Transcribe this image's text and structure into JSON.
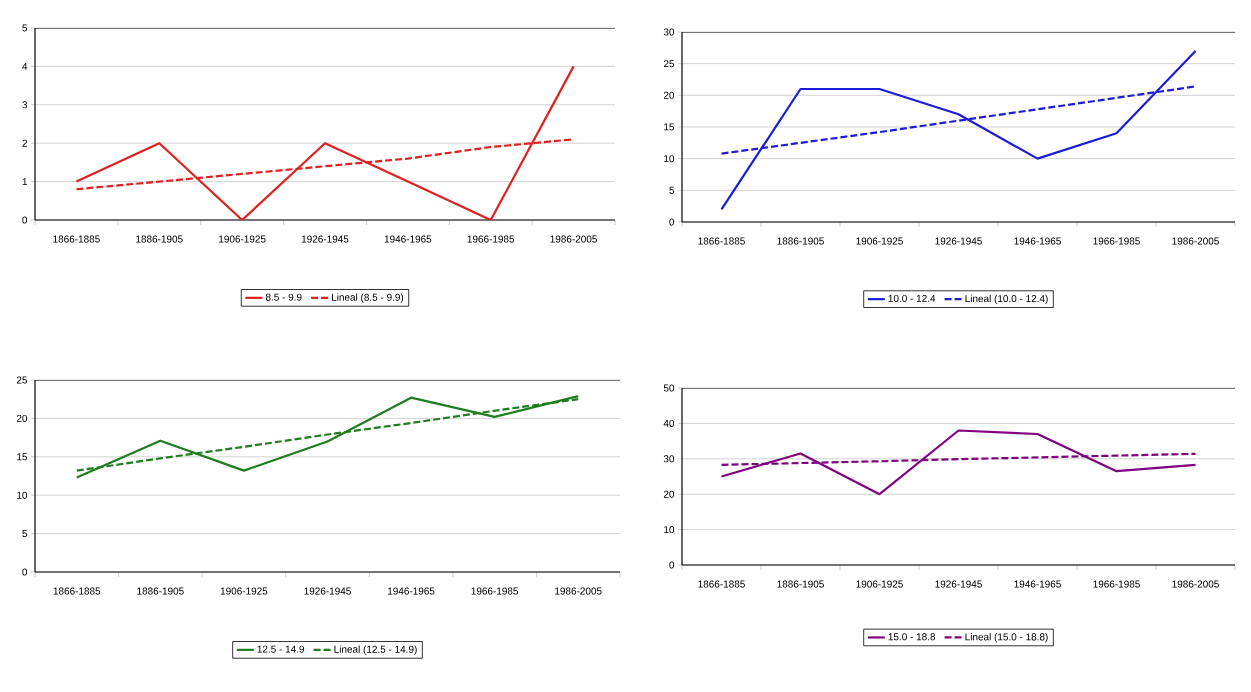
{
  "chart_data": [
    {
      "type": "line",
      "categories": [
        "1866-1885",
        "1886-1905",
        "1906-1925",
        "1926-1945",
        "1946-1965",
        "1966-1985",
        "1986-2005"
      ],
      "ylim": [
        0,
        5
      ],
      "yticks": [
        0,
        1,
        2,
        3,
        4,
        5
      ],
      "grid": "y",
      "legend": "bottom",
      "series": [
        {
          "name": "8.5 - 9.9",
          "color": "#e02020",
          "line_style": "solid",
          "values": [
            1,
            2,
            0,
            2,
            1,
            0,
            4
          ]
        },
        {
          "name": "Lineal (8.5 - 9.9)",
          "color": "#e02020",
          "line_style": "dashed",
          "values": [
            0.8,
            1.0,
            1.2,
            1.4,
            1.6,
            1.9,
            2.1
          ]
        }
      ]
    },
    {
      "type": "line",
      "categories": [
        "1866-1885",
        "1886-1905",
        "1906-1925",
        "1926-1945",
        "1946-1965",
        "1966-1985",
        "1986-2005"
      ],
      "ylim": [
        0,
        30
      ],
      "yticks": [
        0,
        5,
        10,
        15,
        20,
        25,
        30
      ],
      "grid": "y",
      "legend": "bottom",
      "series": [
        {
          "name": "10.0 - 12.4",
          "color": "#1c1cd8",
          "line_style": "solid",
          "values": [
            2,
            21,
            21,
            17,
            10,
            14,
            27
          ]
        },
        {
          "name": "Lineal (10.0 - 12.4)",
          "color": "#1c1cd8",
          "line_style": "dashed",
          "values": [
            10.8,
            12.5,
            14.2,
            16,
            17.8,
            19.6,
            21.4
          ]
        }
      ]
    },
    {
      "type": "line",
      "categories": [
        "1866-1885",
        "1886-1905",
        "1906-1925",
        "1926-1945",
        "1946-1965",
        "1966-1985",
        "1986-2005"
      ],
      "ylim": [
        0,
        25
      ],
      "yticks": [
        0,
        5,
        10,
        15,
        20,
        25
      ],
      "grid": "y",
      "legend": "bottom",
      "series": [
        {
          "name": "12.5 - 14.9",
          "color": "#1e7d1e",
          "line_style": "solid",
          "values": [
            12.3,
            17.1,
            13.2,
            17,
            22.7,
            20.2,
            22.9
          ]
        },
        {
          "name": "Lineal (12.5 - 14.9)",
          "color": "#1e7d1e",
          "line_style": "dashed",
          "values": [
            13.2,
            14.8,
            16.3,
            17.9,
            19.4,
            21,
            22.5
          ]
        }
      ]
    },
    {
      "type": "line",
      "categories": [
        "1866-1885",
        "1886-1905",
        "1906-1925",
        "1926-1945",
        "1946-1965",
        "1966-1985",
        "1986-2005"
      ],
      "ylim": [
        0,
        50
      ],
      "yticks": [
        0,
        10,
        20,
        30,
        40,
        50
      ],
      "grid": "y",
      "legend": "bottom",
      "series": [
        {
          "name": "15.0 - 18.8",
          "color": "#800080",
          "line_style": "solid",
          "values": [
            25,
            31.5,
            20,
            38,
            37,
            26.5,
            28.3
          ]
        },
        {
          "name": "Lineal (15.0 - 18.8)",
          "color": "#800080",
          "line_style": "dashed",
          "values": [
            28.3,
            28.8,
            29.3,
            29.9,
            30.4,
            30.9,
            31.4
          ]
        }
      ]
    }
  ]
}
